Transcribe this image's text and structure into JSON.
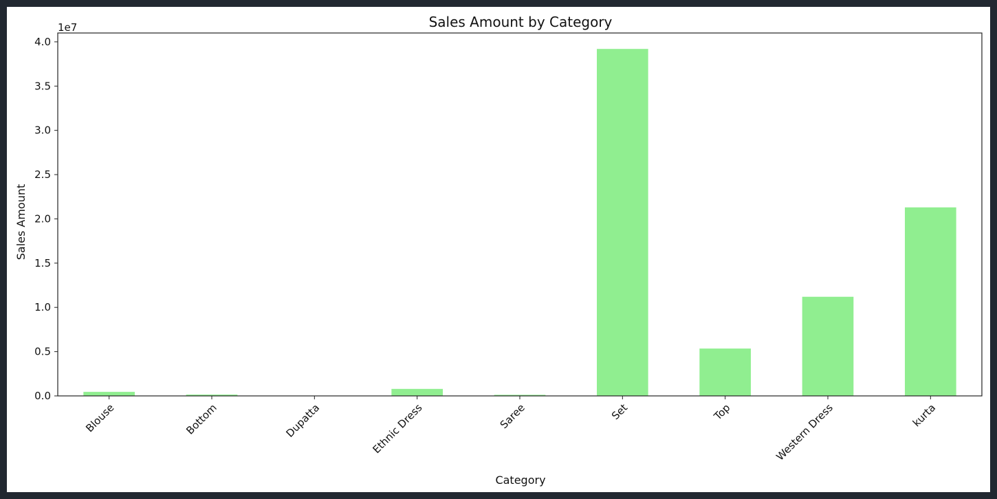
{
  "chart_data": {
    "type": "bar",
    "title": "Sales Amount by Category",
    "xlabel": "Category",
    "ylabel": "Sales Amount",
    "offset_text": "1e7",
    "categories": [
      "Blouse",
      "Bottom",
      "Dupatta",
      "Ethnic Dress",
      "Saree",
      "Set",
      "Top",
      "Western Dress",
      "kurta"
    ],
    "values": [
      458000,
      150000,
      900,
      791000,
      123000,
      39200000,
      5350000,
      11200000,
      21300000
    ],
    "ylim": [
      0,
      41000000
    ],
    "yticks": [
      0,
      5000000,
      10000000,
      15000000,
      20000000,
      25000000,
      30000000,
      35000000,
      40000000
    ],
    "ytick_labels": [
      "0.0",
      "0.5",
      "1.0",
      "1.5",
      "2.0",
      "2.5",
      "3.0",
      "3.5",
      "4.0"
    ],
    "bar_color": "#90ee90",
    "axis_color": "#222222",
    "grid": false,
    "legend": "none"
  }
}
